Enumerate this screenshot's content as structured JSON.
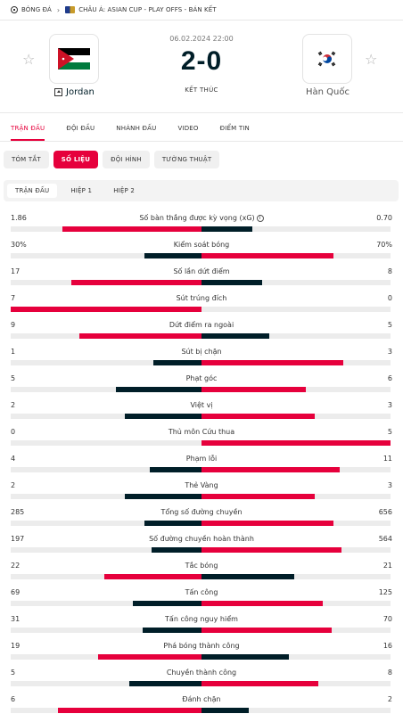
{
  "breadcrumb": {
    "sport": "BÓNG ĐÁ",
    "competition": "CHÂU Á: ASIAN CUP - PLAY OFFS - BÁN KẾT"
  },
  "match": {
    "datetime": "06.02.2024 22:00",
    "score": "2-0",
    "status": "KẾT THÚC",
    "home": {
      "name": "Jordan"
    },
    "away": {
      "name": "Hàn Quốc"
    }
  },
  "main_tabs": [
    "TRẬN ĐẤU",
    "ĐỘI ĐẦU",
    "NHÁNH ĐẤU",
    "VIDEO",
    "ĐIỂM TIN"
  ],
  "sub_tabs": [
    "TÓM TẮT",
    "SỐ LIỆU",
    "ĐỘI HÌNH",
    "TƯỜNG THUẬT"
  ],
  "period_tabs": [
    "TRẬN ĐẤU",
    "HIỆP 1",
    "HIỆP 2"
  ],
  "colors": {
    "accent": "#e6003c",
    "home_bar": "#e6003c",
    "away_bar": "#001e28",
    "track": "#ececec"
  },
  "stats": [
    {
      "name": "Số bàn thắng được kỳ vọng (xG)",
      "home": "1.86",
      "away": "0.70",
      "home_share": 0.73,
      "away_share": 0.27,
      "home_leads": true,
      "info_icon": true
    },
    {
      "name": "Kiểm soát bóng",
      "home": "30%",
      "away": "70%",
      "home_share": 0.3,
      "away_share": 0.7,
      "home_leads": false
    },
    {
      "name": "Số lần dứt điểm",
      "home": "17",
      "away": "8",
      "home_share": 0.68,
      "away_share": 0.32,
      "home_leads": true
    },
    {
      "name": "Sút trúng đích",
      "home": "7",
      "away": "0",
      "home_share": 1.0,
      "away_share": 0.0,
      "home_leads": true
    },
    {
      "name": "Dứt điểm ra ngoài",
      "home": "9",
      "away": "5",
      "home_share": 0.64,
      "away_share": 0.36,
      "home_leads": true
    },
    {
      "name": "Sút bị chặn",
      "home": "1",
      "away": "3",
      "home_share": 0.25,
      "away_share": 0.75,
      "home_leads": false
    },
    {
      "name": "Phạt góc",
      "home": "5",
      "away": "6",
      "home_share": 0.45,
      "away_share": 0.55,
      "home_leads": false
    },
    {
      "name": "Việt vị",
      "home": "2",
      "away": "3",
      "home_share": 0.4,
      "away_share": 0.6,
      "home_leads": false
    },
    {
      "name": "Thủ môn Cứu thua",
      "home": "0",
      "away": "5",
      "home_share": 0.0,
      "away_share": 1.0,
      "home_leads": false
    },
    {
      "name": "Phạm lỗi",
      "home": "4",
      "away": "11",
      "home_share": 0.27,
      "away_share": 0.73,
      "home_leads": false
    },
    {
      "name": "Thẻ Vàng",
      "home": "2",
      "away": "3",
      "home_share": 0.4,
      "away_share": 0.6,
      "home_leads": false
    },
    {
      "name": "Tổng số đường chuyền",
      "home": "285",
      "away": "656",
      "home_share": 0.3,
      "away_share": 0.7,
      "home_leads": false
    },
    {
      "name": "Số đường chuyền hoàn thành",
      "home": "197",
      "away": "564",
      "home_share": 0.26,
      "away_share": 0.74,
      "home_leads": false
    },
    {
      "name": "Tắc bóng",
      "home": "22",
      "away": "21",
      "home_share": 0.51,
      "away_share": 0.49,
      "home_leads": true
    },
    {
      "name": "Tấn công",
      "home": "69",
      "away": "125",
      "home_share": 0.36,
      "away_share": 0.64,
      "home_leads": false
    },
    {
      "name": "Tấn công nguy hiểm",
      "home": "31",
      "away": "70",
      "home_share": 0.31,
      "away_share": 0.69,
      "home_leads": false
    },
    {
      "name": "Phá bóng thành công",
      "home": "19",
      "away": "16",
      "home_share": 0.54,
      "away_share": 0.46,
      "home_leads": true
    },
    {
      "name": "Chuyền thành công",
      "home": "5",
      "away": "8",
      "home_share": 0.38,
      "away_share": 0.62,
      "home_leads": false
    },
    {
      "name": "Đánh chặn",
      "home": "6",
      "away": "2",
      "home_share": 0.75,
      "away_share": 0.25,
      "home_leads": true
    }
  ]
}
